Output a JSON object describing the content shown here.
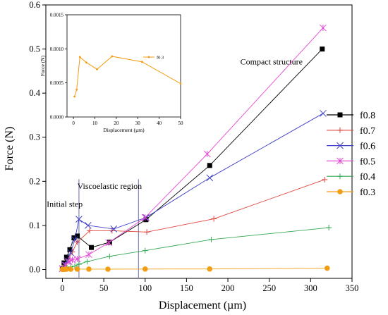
{
  "chart_data": [
    {
      "type": "line",
      "xlabel": "Displacement (µm)",
      "ylabel": "Force (N)",
      "xlim": [
        -20,
        350
      ],
      "ylim": [
        -0.02,
        0.6
      ],
      "xticks": [
        0,
        50,
        100,
        150,
        200,
        250,
        300,
        350
      ],
      "yticks": [
        0.0,
        0.1,
        0.2,
        0.3,
        0.4,
        0.5,
        0.6
      ],
      "xtick_labels": [
        "0",
        "50",
        "100",
        "150",
        "200",
        "250",
        "300",
        "350"
      ],
      "ytick_labels": [
        "0.0",
        "0.1",
        "0.2",
        "0.3",
        "0.4",
        "0.5",
        "0.6"
      ],
      "grid": false,
      "legend": "right",
      "series": [
        {
          "name": "f0.8",
          "color": "#000000",
          "marker": "square",
          "x": [
            0,
            2,
            5,
            9,
            14,
            18,
            35,
            57,
            101,
            178,
            314
          ],
          "y": [
            0.002,
            0.015,
            0.028,
            0.045,
            0.072,
            0.076,
            0.05,
            0.062,
            0.113,
            0.236,
            0.5
          ]
        },
        {
          "name": "f0.7",
          "color": "#e0453c",
          "marker": "plus",
          "x": [
            0,
            3,
            7,
            12,
            18,
            33,
            60,
            102,
            183,
            317
          ],
          "y": [
            0.002,
            0.01,
            0.022,
            0.04,
            0.062,
            0.088,
            0.088,
            0.085,
            0.115,
            0.204
          ]
        },
        {
          "name": "f0.6",
          "color": "#3f3fc7",
          "marker": "x",
          "x": [
            0,
            3,
            6,
            10,
            15,
            20,
            31,
            62,
            101,
            178,
            315
          ],
          "y": [
            0.002,
            0.01,
            0.02,
            0.038,
            0.068,
            0.114,
            0.1,
            0.092,
            0.118,
            0.208,
            0.354
          ]
        },
        {
          "name": "f0.5",
          "color": "#e64bd6",
          "marker": "asterisk",
          "x": [
            0,
            4,
            8,
            12,
            18,
            32,
            56,
            100,
            175,
            315
          ],
          "y": [
            0.002,
            0.01,
            0.018,
            0.022,
            0.024,
            0.034,
            0.061,
            0.118,
            0.262,
            0.548
          ]
        },
        {
          "name": "f0.4",
          "color": "#34a853",
          "marker": "plus",
          "x": [
            0,
            5,
            10,
            15,
            20,
            30,
            57,
            100,
            180,
            322
          ],
          "y": [
            0.001,
            0.004,
            0.006,
            0.008,
            0.012,
            0.018,
            0.03,
            0.043,
            0.068,
            0.095
          ]
        },
        {
          "name": "f0.3",
          "color": "#f39c12",
          "marker": "circle",
          "x": [
            0,
            2,
            5,
            10,
            18,
            32,
            55,
            100,
            178,
            320
          ],
          "y": [
            0.0003,
            0.0004,
            0.0009,
            0.0008,
            0.0009,
            0.0009,
            0.0008,
            0.0011,
            0.0013,
            0.0031
          ]
        }
      ],
      "vlines": [
        20,
        92
      ],
      "annotations": [
        {
          "text": "Initial step",
          "x": -19,
          "y": 0.142
        },
        {
          "text": "Viscoelastic region",
          "x": 18,
          "y": 0.183
        },
        {
          "text": "Compact structure",
          "x": 215,
          "y": 0.465
        }
      ]
    },
    {
      "type": "line",
      "role": "inset",
      "xlabel": "Displacement (µm)",
      "ylabel": "Force (N)",
      "xlim": [
        -3,
        50
      ],
      "ylim": [
        0,
        0.0015
      ],
      "xticks": [
        0,
        10,
        20,
        30,
        40,
        50
      ],
      "yticks": [
        0.0,
        0.0005,
        0.001,
        0.0015
      ],
      "xtick_labels": [
        "0",
        "10",
        "20",
        "30",
        "40",
        "50"
      ],
      "ytick_labels": [
        "0.0000",
        "0.0005",
        "0.0010",
        "0.0015"
      ],
      "legend": "top-right",
      "series": [
        {
          "name": "f0.3",
          "color": "#f39c12",
          "marker": "dot",
          "x": [
            0.5,
            1.5,
            3,
            6,
            11,
            18,
            32,
            50
          ],
          "y": [
            0.0003,
            0.0004,
            0.00088,
            0.0008,
            0.0007,
            0.00089,
            0.00081,
            0.00049
          ]
        }
      ]
    }
  ]
}
